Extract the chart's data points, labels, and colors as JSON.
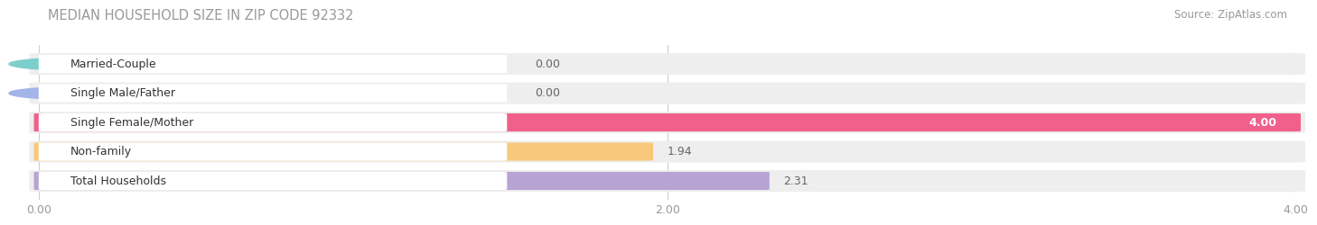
{
  "title": "MEDIAN HOUSEHOLD SIZE IN ZIP CODE 92332",
  "source": "Source: ZipAtlas.com",
  "categories": [
    "Married-Couple",
    "Single Male/Father",
    "Single Female/Mother",
    "Non-family",
    "Total Households"
  ],
  "values": [
    0.0,
    0.0,
    4.0,
    1.94,
    2.31
  ],
  "bar_colors": [
    "#7ecece",
    "#a3b4e8",
    "#f0608a",
    "#f8c87c",
    "#b8a4d4"
  ],
  "bar_bg_color": "#eeeeee",
  "xlim": [
    0,
    4.0
  ],
  "xticks": [
    0.0,
    2.0,
    4.0
  ],
  "xtick_labels": [
    "0.00",
    "2.00",
    "4.00"
  ],
  "value_label_outside_color": "#666666",
  "value_label_inside_color": "#ffffff",
  "title_color": "#999999",
  "source_color": "#999999",
  "background_color": "#ffffff",
  "bar_height": 0.62,
  "label_box_color": "#ffffff"
}
